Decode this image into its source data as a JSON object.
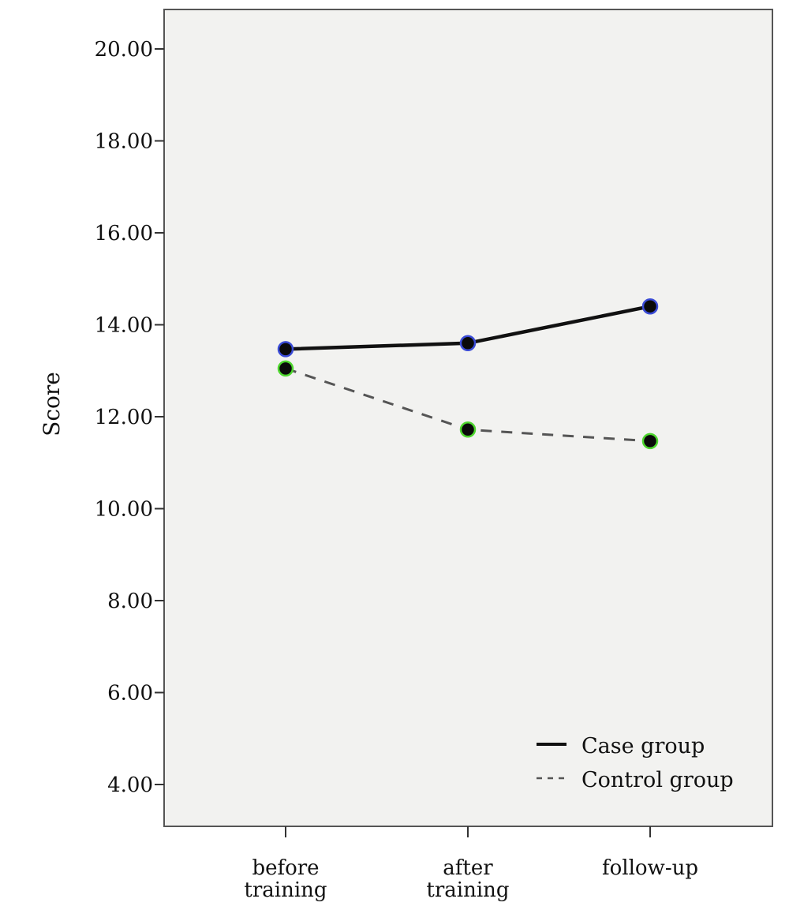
{
  "chart_data": {
    "type": "line",
    "title": "",
    "xlabel": "",
    "ylabel": "Score",
    "categories": [
      [
        "before",
        "training"
      ],
      [
        "after",
        "training"
      ],
      [
        "follow-up"
      ]
    ],
    "ylim": [
      3.0,
      21.0
    ],
    "yticks": [
      4,
      6,
      8,
      10,
      12,
      14,
      16,
      18,
      20
    ],
    "ytick_labels": [
      "4.00",
      "6.00",
      "8.00",
      "10.00",
      "12.00",
      "14.00",
      "16.00",
      "18.00",
      "20.00"
    ],
    "grid": false,
    "legend_position": "bottom-right",
    "series": [
      {
        "name": "Case group",
        "values": [
          13.47,
          13.6,
          14.4
        ],
        "style": "solid",
        "line_color": "#111111",
        "marker_ring": "#3a4bd6"
      },
      {
        "name": "Control group",
        "values": [
          13.05,
          11.72,
          11.47
        ],
        "style": "dashed",
        "line_color": "#555555",
        "marker_ring": "#4ed62e"
      }
    ],
    "plot_background": "#f2f2f0"
  }
}
